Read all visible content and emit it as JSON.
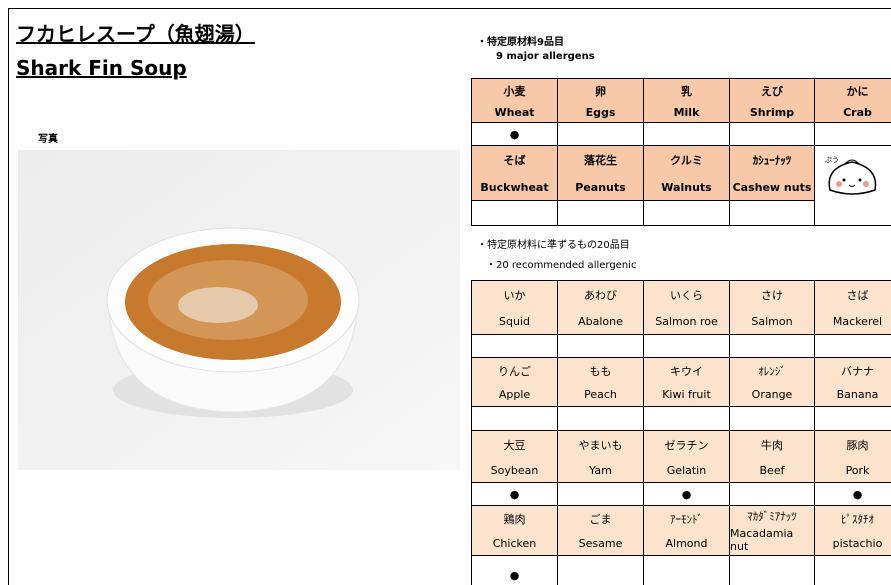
{
  "header": {
    "title_jp": "フカヒレスープ（魚翅湯）",
    "title_en": "Shark Fin Soup",
    "photo_label": "写真"
  },
  "major": {
    "heading_jp": "・特定原材料9品目",
    "heading_en": "9 major allergens",
    "rows": [
      [
        {
          "jp": "小麦",
          "en": "Wheat",
          "mark": "●"
        },
        {
          "jp": "卵",
          "en": "Eggs"
        },
        {
          "jp": "乳",
          "en": "Milk"
        },
        {
          "jp": "えび",
          "en": "Shrimp"
        },
        {
          "jp": "かに",
          "en": "Crab"
        }
      ],
      [
        {
          "jp": "そば",
          "en": "Buckwheat"
        },
        {
          "jp": "落花生",
          "en": "Peanuts"
        },
        {
          "jp": "クルミ",
          "en": "Walnuts"
        },
        {
          "jp": "ｶｼｭｰﾅｯﾂ",
          "en": "Cashew nuts"
        }
      ]
    ]
  },
  "recommended": {
    "heading_jp": "・特定原材料に準ずるもの20品目",
    "heading_en": "・20 recommended allergenic",
    "rows": [
      [
        {
          "jp": "いか",
          "en": "Squid"
        },
        {
          "jp": "あわび",
          "en": "Abalone"
        },
        {
          "jp": "いくら",
          "en": "Salmon roe"
        },
        {
          "jp": "さけ",
          "en": "Salmon"
        },
        {
          "jp": "さば",
          "en": "Mackerel"
        }
      ],
      [
        {
          "jp": "りんご",
          "en": "Apple"
        },
        {
          "jp": "もも",
          "en": "Peach"
        },
        {
          "jp": "キウイ",
          "en": "Kiwi fruit"
        },
        {
          "jp": "ｵﾚﾝｼﾞ",
          "en": "Orange"
        },
        {
          "jp": "バナナ",
          "en": "Banana"
        }
      ],
      [
        {
          "jp": "大豆",
          "en": "Soybean",
          "mark": "●"
        },
        {
          "jp": "やまいも",
          "en": "Yam"
        },
        {
          "jp": "ゼラチン",
          "en": "Gelatin",
          "mark": "●"
        },
        {
          "jp": "牛肉",
          "en": "Beef"
        },
        {
          "jp": "豚肉",
          "en": "Pork",
          "mark": "●"
        }
      ],
      [
        {
          "jp": "鶏肉",
          "en": "Chicken",
          "mark": "●"
        },
        {
          "jp": "ごま",
          "en": "Sesame"
        },
        {
          "jp": "ｱｰﾓﾝﾄﾞ",
          "en": "Almond"
        },
        {
          "jp": "ﾏｶﾀﾞﾐｱﾅｯﾂ",
          "en": "Macadamia nut"
        },
        {
          "jp": "ﾋﾟｽﾀﾁｵ",
          "en": "pistachio"
        }
      ]
    ]
  }
}
